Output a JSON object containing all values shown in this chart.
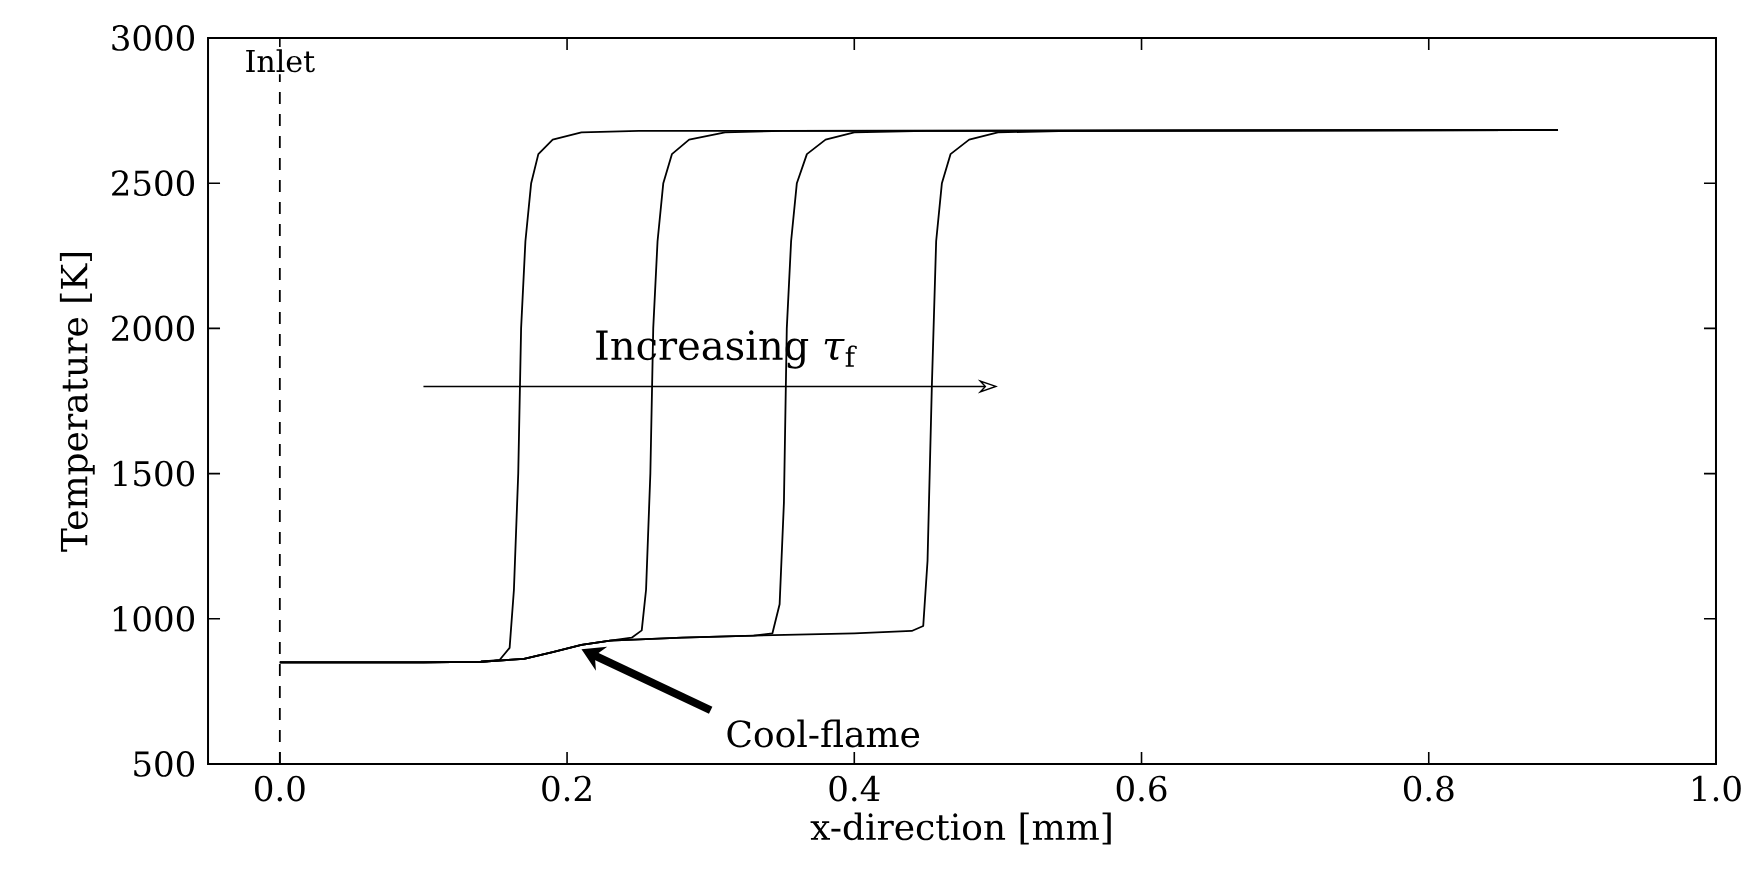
{
  "chart_data": {
    "type": "line",
    "xlabel": "x-direction [mm]",
    "ylabel": "Temperature [K]",
    "xlim": [
      -0.05,
      1.0
    ],
    "ylim": [
      500,
      3000
    ],
    "xticks": [
      {
        "value": 0,
        "label": "0.0"
      },
      {
        "value": 0.2,
        "label": "0.2"
      },
      {
        "value": 0.4,
        "label": "0.4"
      },
      {
        "value": 0.6,
        "label": "0.6"
      },
      {
        "value": 0.8,
        "label": "0.8"
      },
      {
        "value": 1.0,
        "label": "1.0"
      }
    ],
    "yticks": [
      500,
      1000,
      1500,
      2000,
      2500,
      3000
    ],
    "marker": "none",
    "series": [
      {
        "color": "#000000",
        "line_style": "solid",
        "x": [
          0,
          0.1,
          0.14,
          0.153,
          0.16,
          0.163,
          0.166,
          0.168,
          0.171,
          0.175,
          0.18,
          0.19,
          0.21,
          0.25,
          0.89
        ],
        "values": [
          850,
          850,
          852,
          858,
          900,
          1100,
          1500,
          2000,
          2300,
          2500,
          2600,
          2650,
          2675,
          2680,
          2683
        ]
      },
      {
        "color": "#000000",
        "line_style": "solid",
        "x": [
          0,
          0.1,
          0.14,
          0.17,
          0.19,
          0.21,
          0.23,
          0.245,
          0.252,
          0.255,
          0.258,
          0.26,
          0.263,
          0.267,
          0.273,
          0.285,
          0.31,
          0.35,
          0.89
        ],
        "values": [
          850,
          850,
          852,
          862,
          885,
          910,
          925,
          935,
          960,
          1100,
          1500,
          2000,
          2300,
          2500,
          2600,
          2650,
          2675,
          2680,
          2683
        ]
      },
      {
        "color": "#000000",
        "line_style": "solid",
        "x": [
          0,
          0.1,
          0.14,
          0.17,
          0.19,
          0.21,
          0.23,
          0.28,
          0.33,
          0.343,
          0.348,
          0.351,
          0.353,
          0.356,
          0.36,
          0.367,
          0.38,
          0.4,
          0.45,
          0.89
        ],
        "values": [
          850,
          850,
          852,
          862,
          885,
          910,
          925,
          935,
          942,
          950,
          1050,
          1400,
          2000,
          2300,
          2500,
          2600,
          2650,
          2675,
          2680,
          2683
        ]
      },
      {
        "color": "#000000",
        "line_style": "solid",
        "x": [
          0,
          0.1,
          0.14,
          0.17,
          0.19,
          0.21,
          0.23,
          0.28,
          0.33,
          0.4,
          0.44,
          0.448,
          0.451,
          0.454,
          0.457,
          0.461,
          0.467,
          0.48,
          0.5,
          0.55,
          0.89
        ],
        "values": [
          850,
          850,
          852,
          862,
          885,
          910,
          925,
          935,
          942,
          950,
          958,
          975,
          1200,
          1800,
          2300,
          2500,
          2600,
          2650,
          2675,
          2680,
          2683
        ]
      }
    ],
    "ref_lines": [
      {
        "axis": "x",
        "value": 0,
        "label": "Inlet",
        "color": "#000000",
        "line_style": "dashed"
      }
    ],
    "annotations": [
      "Increasing *τ*$_{f}$",
      {
        "text": "Cool-flame",
        "x": 0.21,
        "y": 895
      }
    ]
  }
}
